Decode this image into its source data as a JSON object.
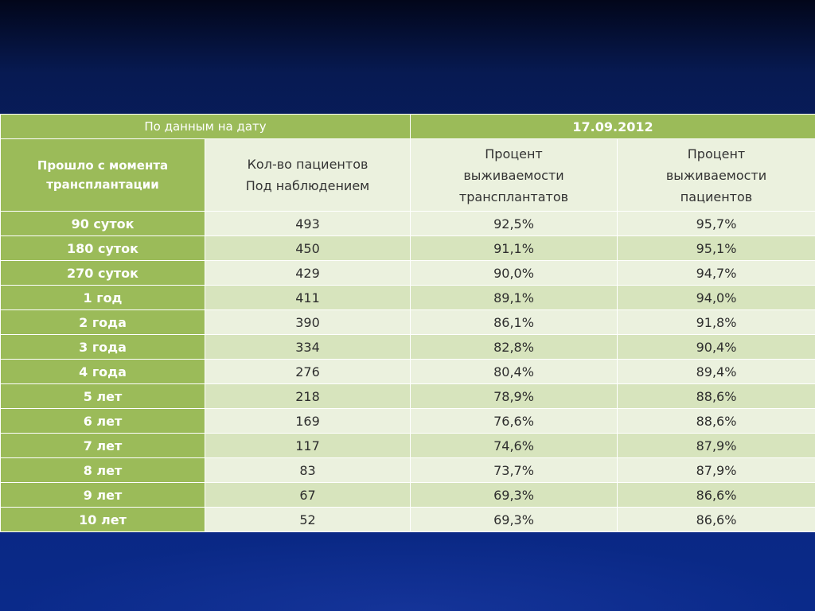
{
  "table": {
    "date_label": "По данным на дату",
    "date_value": "17.09.2012",
    "headers": {
      "period": [
        "Прошло с момента",
        "трансплантации"
      ],
      "patients": [
        "Кол-во пациентов",
        "Под наблюдением"
      ],
      "graft_survival": [
        "Процент",
        "выживаемости",
        "трансплантатов"
      ],
      "patient_survival": [
        "Процент",
        "выживаемости",
        "пациентов"
      ]
    },
    "rows": [
      {
        "period": "90 суток",
        "patients": "493",
        "graft_survival": "92,5%",
        "patient_survival": "95,7%"
      },
      {
        "period": "180 суток",
        "patients": "450",
        "graft_survival": "91,1%",
        "patient_survival": "95,1%"
      },
      {
        "period": "270 суток",
        "patients": "429",
        "graft_survival": "90,0%",
        "patient_survival": "94,7%"
      },
      {
        "period": "1 год",
        "patients": "411",
        "graft_survival": "89,1%",
        "patient_survival": "94,0%"
      },
      {
        "period": "2 года",
        "patients": "390",
        "graft_survival": "86,1%",
        "patient_survival": "91,8%"
      },
      {
        "period": "3 года",
        "patients": "334",
        "graft_survival": "82,8%",
        "patient_survival": "90,4%"
      },
      {
        "period": "4 года",
        "patients": "276",
        "graft_survival": "80,4%",
        "patient_survival": "89,4%"
      },
      {
        "period": "5 лет",
        "patients": "218",
        "graft_survival": "78,9%",
        "patient_survival": "88,6%"
      },
      {
        "period": "6 лет",
        "patients": "169",
        "graft_survival": "76,6%",
        "patient_survival": "88,6%"
      },
      {
        "period": "7 лет",
        "patients": "117",
        "graft_survival": "74,6%",
        "patient_survival": "87,9%"
      },
      {
        "period": "8 лет",
        "patients": "83",
        "graft_survival": "73,7%",
        "patient_survival": "87,9%"
      },
      {
        "period": "9 лет",
        "patients": "67",
        "graft_survival": "69,3%",
        "patient_survival": "86,6%"
      },
      {
        "period": "10 лет",
        "patients": "52",
        "graft_survival": "69,3%",
        "patient_survival": "86,6%"
      }
    ]
  },
  "colors": {
    "accent_green": "#9bbb59",
    "row_light": "#ebf1de",
    "row_dark": "#d7e4bd",
    "background_blue": "#0a2478"
  }
}
